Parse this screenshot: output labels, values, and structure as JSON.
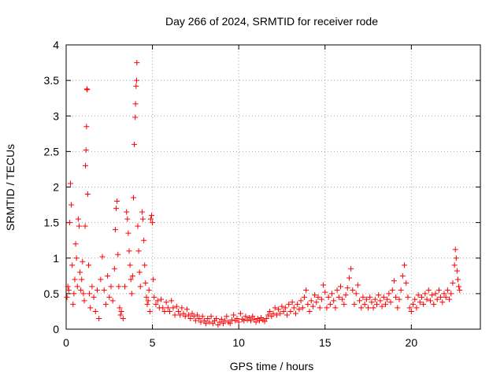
{
  "chart_data": {
    "type": "scatter",
    "title": "Day 266 of 2024, SRMTID for receiver rode",
    "xlabel": "GPS time / hours",
    "ylabel": "SRMTID / TECUs",
    "xlim": [
      0,
      24
    ],
    "ylim": [
      0,
      4
    ],
    "xticks": [
      0,
      5,
      10,
      15,
      20
    ],
    "xtick_labels": [
      "0",
      "5",
      "10",
      "15",
      "20"
    ],
    "yticks": [
      0,
      0.5,
      1,
      1.5,
      2,
      2.5,
      3,
      3.5,
      4
    ],
    "ytick_labels": [
      "0",
      "0.5",
      "1",
      "1.5",
      "2",
      "2.5",
      "3",
      "3.5",
      "4"
    ],
    "grid": true,
    "marker": "plus",
    "series": [
      {
        "name": "SRMTID",
        "color": "#ff0000",
        "points": [
          [
            0.05,
            0.45
          ],
          [
            0.1,
            0.6
          ],
          [
            0.15,
            0.55
          ],
          [
            0.2,
            1.5
          ],
          [
            0.25,
            2.05
          ],
          [
            0.3,
            1.75
          ],
          [
            0.35,
            0.9
          ],
          [
            0.4,
            0.35
          ],
          [
            0.45,
            0.5
          ],
          [
            0.5,
            0.7
          ],
          [
            0.55,
            1.2
          ],
          [
            0.6,
            1.0
          ],
          [
            0.65,
            0.6
          ],
          [
            0.7,
            1.55
          ],
          [
            0.75,
            1.45
          ],
          [
            0.8,
            0.8
          ],
          [
            0.85,
            0.55
          ],
          [
            0.9,
            0.7
          ],
          [
            0.95,
            0.95
          ],
          [
            1.0,
            0.5
          ],
          [
            1.05,
            0.4
          ],
          [
            1.1,
            1.45
          ],
          [
            1.12,
            2.3
          ],
          [
            1.15,
            2.52
          ],
          [
            1.18,
            2.85
          ],
          [
            1.2,
            3.38
          ],
          [
            1.22,
            3.37
          ],
          [
            1.25,
            1.9
          ],
          [
            1.3,
            0.9
          ],
          [
            1.35,
            0.5
          ],
          [
            1.4,
            0.3
          ],
          [
            1.5,
            0.6
          ],
          [
            1.6,
            0.45
          ],
          [
            1.7,
            0.25
          ],
          [
            1.8,
            0.55
          ],
          [
            1.9,
            0.15
          ],
          [
            2.0,
            0.7
          ],
          [
            2.1,
            1.02
          ],
          [
            2.2,
            0.55
          ],
          [
            2.3,
            0.35
          ],
          [
            2.4,
            0.75
          ],
          [
            2.5,
            0.45
          ],
          [
            2.6,
            0.6
          ],
          [
            2.7,
            0.4
          ],
          [
            2.8,
            0.85
          ],
          [
            2.85,
            1.4
          ],
          [
            2.9,
            1.7
          ],
          [
            2.95,
            1.8
          ],
          [
            3.0,
            1.05
          ],
          [
            3.05,
            0.6
          ],
          [
            3.1,
            0.3
          ],
          [
            3.15,
            0.2
          ],
          [
            3.2,
            0.25
          ],
          [
            3.3,
            0.15
          ],
          [
            3.4,
            0.6
          ],
          [
            3.5,
            1.65
          ],
          [
            3.55,
            1.55
          ],
          [
            3.6,
            1.35
          ],
          [
            3.65,
            1.1
          ],
          [
            3.7,
            0.9
          ],
          [
            3.75,
            0.7
          ],
          [
            3.8,
            0.5
          ],
          [
            3.85,
            0.75
          ],
          [
            3.9,
            1.85
          ],
          [
            3.95,
            2.6
          ],
          [
            4.0,
            2.98
          ],
          [
            4.02,
            3.17
          ],
          [
            4.05,
            3.42
          ],
          [
            4.08,
            3.5
          ],
          [
            4.1,
            3.75
          ],
          [
            4.15,
            1.45
          ],
          [
            4.2,
            1.1
          ],
          [
            4.25,
            0.8
          ],
          [
            4.3,
            0.6
          ],
          [
            4.4,
            1.65
          ],
          [
            4.45,
            1.55
          ],
          [
            4.5,
            1.25
          ],
          [
            4.55,
            0.9
          ],
          [
            4.6,
            0.65
          ],
          [
            4.65,
            0.45
          ],
          [
            4.7,
            0.35
          ],
          [
            4.75,
            0.4
          ],
          [
            4.8,
            0.55
          ],
          [
            4.85,
            0.25
          ],
          [
            4.9,
            1.55
          ],
          [
            4.95,
            1.6
          ],
          [
            5.0,
            1.5
          ],
          [
            5.05,
            0.7
          ],
          [
            5.1,
            0.45
          ],
          [
            5.2,
            0.35
          ],
          [
            5.3,
            0.4
          ],
          [
            5.4,
            0.3
          ],
          [
            5.5,
            0.42
          ],
          [
            5.6,
            0.3
          ],
          [
            5.7,
            0.25
          ],
          [
            5.8,
            0.38
          ],
          [
            5.9,
            0.3
          ],
          [
            6.0,
            0.25
          ],
          [
            6.1,
            0.4
          ],
          [
            6.2,
            0.3
          ],
          [
            6.3,
            0.2
          ],
          [
            6.4,
            0.32
          ],
          [
            6.5,
            0.25
          ],
          [
            6.6,
            0.2
          ],
          [
            6.7,
            0.3
          ],
          [
            6.8,
            0.22
          ],
          [
            6.9,
            0.18
          ],
          [
            7.0,
            0.28
          ],
          [
            7.1,
            0.2
          ],
          [
            7.2,
            0.15
          ],
          [
            7.3,
            0.22
          ],
          [
            7.4,
            0.18
          ],
          [
            7.5,
            0.12
          ],
          [
            7.6,
            0.2
          ],
          [
            7.7,
            0.15
          ],
          [
            7.8,
            0.1
          ],
          [
            7.9,
            0.18
          ],
          [
            8.0,
            0.12
          ],
          [
            8.1,
            0.08
          ],
          [
            8.2,
            0.15
          ],
          [
            8.3,
            0.1
          ],
          [
            8.4,
            0.18
          ],
          [
            8.5,
            0.08
          ],
          [
            8.6,
            0.12
          ],
          [
            8.7,
            0.15
          ],
          [
            8.8,
            0.06
          ],
          [
            8.9,
            0.1
          ],
          [
            9.0,
            0.14
          ],
          [
            9.1,
            0.08
          ],
          [
            9.2,
            0.12
          ],
          [
            9.3,
            0.18
          ],
          [
            9.4,
            0.1
          ],
          [
            9.5,
            0.08
          ],
          [
            9.6,
            0.13
          ],
          [
            9.7,
            0.2
          ],
          [
            9.8,
            0.12
          ],
          [
            9.9,
            0.15
          ],
          [
            10.0,
            0.1
          ],
          [
            10.1,
            0.22
          ],
          [
            10.2,
            0.14
          ],
          [
            10.3,
            0.12
          ],
          [
            10.4,
            0.18
          ],
          [
            10.5,
            0.13
          ],
          [
            10.6,
            0.16
          ],
          [
            10.7,
            0.12
          ],
          [
            10.8,
            0.18
          ],
          [
            10.9,
            0.14
          ],
          [
            11.0,
            0.1
          ],
          [
            11.1,
            0.15
          ],
          [
            11.2,
            0.12
          ],
          [
            11.3,
            0.16
          ],
          [
            11.4,
            0.13
          ],
          [
            11.5,
            0.11
          ],
          [
            11.6,
            0.15
          ],
          [
            11.7,
            0.2
          ],
          [
            11.8,
            0.25
          ],
          [
            11.9,
            0.18
          ],
          [
            12.0,
            0.22
          ],
          [
            12.1,
            0.3
          ],
          [
            12.2,
            0.2
          ],
          [
            12.3,
            0.28
          ],
          [
            12.4,
            0.22
          ],
          [
            12.5,
            0.32
          ],
          [
            12.6,
            0.25
          ],
          [
            12.7,
            0.3
          ],
          [
            12.8,
            0.2
          ],
          [
            12.9,
            0.35
          ],
          [
            13.0,
            0.25
          ],
          [
            13.1,
            0.38
          ],
          [
            13.2,
            0.3
          ],
          [
            13.3,
            0.22
          ],
          [
            13.4,
            0.35
          ],
          [
            13.5,
            0.28
          ],
          [
            13.6,
            0.4
          ],
          [
            13.7,
            0.3
          ],
          [
            13.8,
            0.45
          ],
          [
            13.9,
            0.55
          ],
          [
            14.0,
            0.35
          ],
          [
            14.1,
            0.25
          ],
          [
            14.2,
            0.4
          ],
          [
            14.3,
            0.32
          ],
          [
            14.4,
            0.48
          ],
          [
            14.5,
            0.38
          ],
          [
            14.6,
            0.45
          ],
          [
            14.7,
            0.3
          ],
          [
            14.8,
            0.42
          ],
          [
            14.9,
            0.62
          ],
          [
            15.0,
            0.52
          ],
          [
            15.1,
            0.3
          ],
          [
            15.2,
            0.45
          ],
          [
            15.3,
            0.35
          ],
          [
            15.4,
            0.5
          ],
          [
            15.5,
            0.4
          ],
          [
            15.6,
            0.3
          ],
          [
            15.7,
            0.55
          ],
          [
            15.8,
            0.45
          ],
          [
            15.9,
            0.6
          ],
          [
            16.0,
            0.42
          ],
          [
            16.1,
            0.35
          ],
          [
            16.2,
            0.48
          ],
          [
            16.3,
            0.58
          ],
          [
            16.4,
            0.72
          ],
          [
            16.5,
            0.85
          ],
          [
            16.6,
            0.55
          ],
          [
            16.7,
            0.35
          ],
          [
            16.8,
            0.5
          ],
          [
            16.9,
            0.62
          ],
          [
            17.0,
            0.4
          ],
          [
            17.1,
            0.3
          ],
          [
            17.2,
            0.45
          ],
          [
            17.3,
            0.35
          ],
          [
            17.4,
            0.42
          ],
          [
            17.5,
            0.3
          ],
          [
            17.6,
            0.45
          ],
          [
            17.7,
            0.38
          ],
          [
            17.8,
            0.3
          ],
          [
            17.9,
            0.42
          ],
          [
            18.0,
            0.35
          ],
          [
            18.1,
            0.48
          ],
          [
            18.2,
            0.4
          ],
          [
            18.3,
            0.32
          ],
          [
            18.4,
            0.45
          ],
          [
            18.5,
            0.35
          ],
          [
            18.6,
            0.42
          ],
          [
            18.7,
            0.5
          ],
          [
            18.8,
            0.38
          ],
          [
            18.9,
            0.55
          ],
          [
            19.0,
            0.68
          ],
          [
            19.1,
            0.45
          ],
          [
            19.2,
            0.3
          ],
          [
            19.3,
            0.42
          ],
          [
            19.4,
            0.55
          ],
          [
            19.5,
            0.75
          ],
          [
            19.6,
            0.9
          ],
          [
            19.7,
            0.65
          ],
          [
            19.8,
            0.45
          ],
          [
            19.9,
            0.3
          ],
          [
            20.0,
            0.25
          ],
          [
            20.1,
            0.35
          ],
          [
            20.2,
            0.42
          ],
          [
            20.3,
            0.3
          ],
          [
            20.4,
            0.48
          ],
          [
            20.5,
            0.38
          ],
          [
            20.6,
            0.45
          ],
          [
            20.7,
            0.35
          ],
          [
            20.8,
            0.5
          ],
          [
            20.9,
            0.42
          ],
          [
            21.0,
            0.55
          ],
          [
            21.1,
            0.4
          ],
          [
            21.2,
            0.48
          ],
          [
            21.3,
            0.35
          ],
          [
            21.4,
            0.5
          ],
          [
            21.5,
            0.42
          ],
          [
            21.6,
            0.55
          ],
          [
            21.7,
            0.45
          ],
          [
            21.8,
            0.38
          ],
          [
            21.9,
            0.5
          ],
          [
            22.0,
            0.45
          ],
          [
            22.1,
            0.55
          ],
          [
            22.2,
            0.42
          ],
          [
            22.3,
            0.5
          ],
          [
            22.4,
            0.65
          ],
          [
            22.5,
            0.9
          ],
          [
            22.55,
            1.12
          ],
          [
            22.6,
            1.0
          ],
          [
            22.65,
            0.82
          ],
          [
            22.7,
            0.7
          ],
          [
            22.75,
            0.6
          ],
          [
            22.8,
            0.55
          ]
        ]
      }
    ]
  }
}
